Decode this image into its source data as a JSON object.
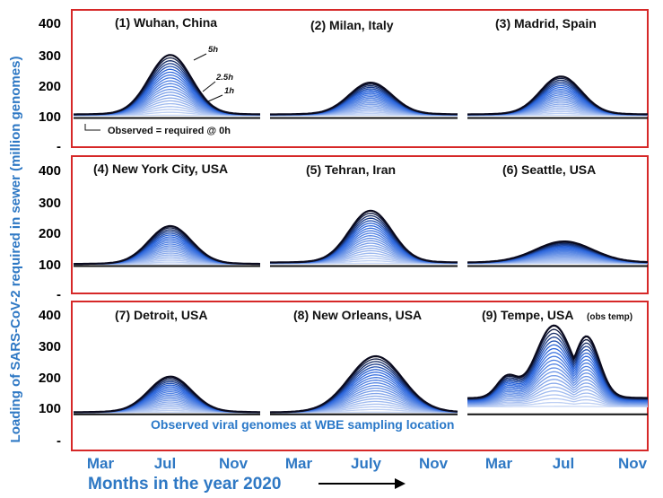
{
  "figure": {
    "y_axis_title": "Loading of SARS-CoV-2 required in sewer (million genomes)",
    "x_axis_title": "Months in the year 2020",
    "y_ticks": [
      "400",
      "300",
      "200",
      "100",
      "-"
    ],
    "row_note": "Observed viral genomes at WBE sampling location",
    "accent_color": "#2e78c4",
    "frame_color": "#d62828"
  },
  "chart_data": {
    "type": "line",
    "ylim": [
      0,
      420
    ],
    "x_range": [
      "Jan",
      "Dec"
    ],
    "hour_levels": [
      0,
      1,
      2.5,
      5
    ],
    "panels": [
      {
        "id": 1,
        "title": "(1) Wuhan, China",
        "peak": 300,
        "base": 110,
        "peak_month": 6.7,
        "month_labels": [
          "Mar",
          "Jul",
          "Nov"
        ],
        "annotations": [
          "5h",
          "2.5h",
          "1h"
        ],
        "note": "Observed = required @ 0h"
      },
      {
        "id": 2,
        "title": "(2) Milan, Italy",
        "peak": 210,
        "base": 110,
        "peak_month": 6.9,
        "month_labels": [
          "Mar",
          "July",
          "Nov"
        ]
      },
      {
        "id": 3,
        "title": "(3) Madrid, Spain",
        "peak": 230,
        "base": 110,
        "peak_month": 6.7,
        "month_labels": [
          "Mar",
          "Jul",
          "Nov"
        ]
      },
      {
        "id": 4,
        "title": "(4) New York City, USA",
        "peak": 225,
        "base": 105,
        "peak_month": 6.7
      },
      {
        "id": 5,
        "title": "(5) Tehran,  Iran",
        "peak": 275,
        "base": 110,
        "peak_month": 6.9
      },
      {
        "id": 6,
        "title": "(6) Seattle, USA",
        "peak": 175,
        "base": 110,
        "peak_month": 6.9
      },
      {
        "id": 7,
        "title": "(7) Detroit, USA",
        "peak": 212,
        "base": 105,
        "peak_month": 6.7
      },
      {
        "id": 8,
        "title": "(8) New Orleans, USA",
        "peak": 275,
        "base": 105,
        "peak_month": 7.2
      },
      {
        "id": 9,
        "title": "(9) Tempe, USA",
        "title_suffix": "(obs temp)",
        "peak": 370,
        "base": 150,
        "peak_month": 6.7
      }
    ],
    "month_labels": [
      "Mar",
      "Jul",
      "Nov",
      "Mar",
      "July",
      "Nov",
      "Mar",
      "Jul",
      "Nov"
    ]
  }
}
